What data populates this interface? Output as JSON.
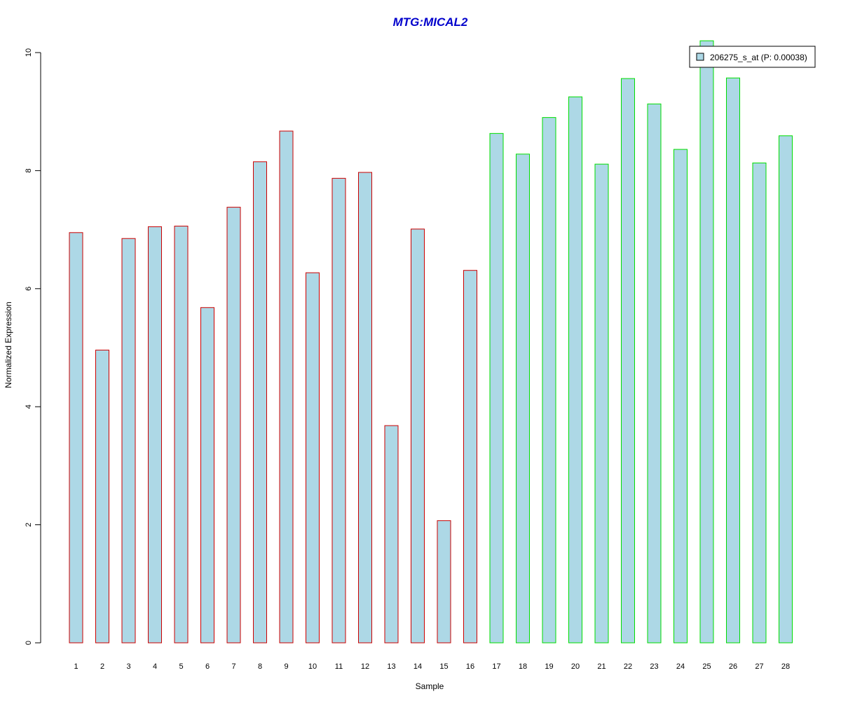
{
  "chart_data": {
    "type": "bar",
    "title": "MTG:MICAL2",
    "xlabel": "Sample",
    "ylabel": "Normalized Expression",
    "categories": [
      "1",
      "2",
      "3",
      "4",
      "5",
      "6",
      "7",
      "8",
      "9",
      "10",
      "11",
      "12",
      "13",
      "14",
      "15",
      "16",
      "17",
      "18",
      "19",
      "20",
      "21",
      "22",
      "23",
      "24",
      "25",
      "26",
      "27",
      "28"
    ],
    "series": [
      {
        "name": "206275_s_at (P: 0.00038)",
        "values": [
          6.95,
          4.96,
          6.85,
          7.05,
          7.06,
          5.68,
          7.38,
          8.15,
          8.67,
          6.27,
          7.87,
          7.97,
          3.68,
          7.01,
          2.07,
          6.31,
          8.63,
          8.28,
          8.9,
          9.25,
          8.11,
          9.56,
          9.13,
          8.36,
          10.2,
          9.57,
          8.13,
          8.59
        ]
      }
    ],
    "group_border_colors": [
      "#cc0000",
      "#cc0000",
      "#cc0000",
      "#cc0000",
      "#cc0000",
      "#cc0000",
      "#cc0000",
      "#cc0000",
      "#cc0000",
      "#cc0000",
      "#cc0000",
      "#cc0000",
      "#cc0000",
      "#cc0000",
      "#cc0000",
      "#cc0000",
      "#00dd00",
      "#00dd00",
      "#00dd00",
      "#00dd00",
      "#00dd00",
      "#00dd00",
      "#00dd00",
      "#00dd00",
      "#00dd00",
      "#00dd00",
      "#00dd00",
      "#00dd00"
    ],
    "bar_fill": "#add8e6",
    "title_color": "#0000cc",
    "yticks": [
      "0",
      "2",
      "4",
      "6",
      "8",
      "10"
    ],
    "ylim": [
      0,
      10
    ],
    "grid": false,
    "legend_position": "top-right"
  }
}
